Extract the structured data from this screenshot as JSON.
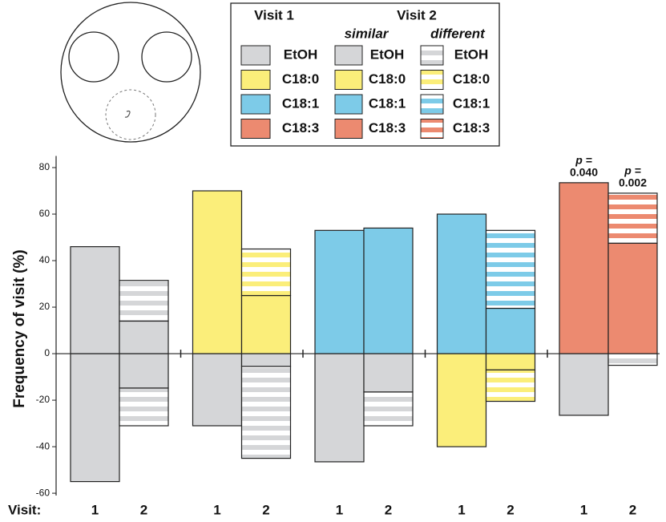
{
  "chart_data": {
    "type": "bar",
    "ylabel": "Frequency of visit (%)",
    "xlabel": "Visit:",
    "ylim": [
      -61,
      85
    ],
    "yticks": [
      -60,
      -40,
      -20,
      0,
      20,
      40,
      60,
      80
    ],
    "legend": {
      "headers": [
        "Visit 1",
        "Visit 2"
      ],
      "subheaders": [
        "similar",
        "different"
      ]
    },
    "series": [
      {
        "name": "EtOH",
        "color": "#d5d6d8"
      },
      {
        "name": "C18:0",
        "color": "#fbee7a"
      },
      {
        "name": "C18:1",
        "color": "#7dcbe8"
      },
      {
        "name": "C18:3",
        "color": "#ec8a70"
      }
    ],
    "bars": [
      {
        "label": "1",
        "segments": [
          {
            "series": "EtOH",
            "fill": "solid",
            "value": 46
          },
          {
            "series": "EtOH",
            "fill": "solid",
            "value": -55
          }
        ]
      },
      {
        "label": "2",
        "segments": [
          {
            "series": "EtOH",
            "fill": "solid",
            "value": 14
          },
          {
            "series": "EtOH",
            "fill": "striped",
            "value": 17.5
          },
          {
            "series": "EtOH",
            "fill": "solid",
            "value": -14.8
          },
          {
            "series": "EtOH",
            "fill": "striped",
            "value": -16.2
          }
        ]
      },
      {
        "label": "1",
        "segments": [
          {
            "series": "C18:0",
            "fill": "solid",
            "value": 70
          },
          {
            "series": "EtOH",
            "fill": "solid",
            "value": -31
          }
        ]
      },
      {
        "label": "2",
        "segments": [
          {
            "series": "C18:0",
            "fill": "solid",
            "value": 25
          },
          {
            "series": "C18:0",
            "fill": "striped",
            "value": 20
          },
          {
            "series": "EtOH",
            "fill": "solid",
            "value": -5.5
          },
          {
            "series": "EtOH",
            "fill": "striped",
            "value": -39.5
          }
        ]
      },
      {
        "label": "1",
        "segments": [
          {
            "series": "C18:1",
            "fill": "solid",
            "value": 53
          },
          {
            "series": "EtOH",
            "fill": "solid",
            "value": -46.5
          }
        ]
      },
      {
        "label": "2",
        "segments": [
          {
            "series": "C18:1",
            "fill": "solid",
            "value": 54
          },
          {
            "series": "EtOH",
            "fill": "solid",
            "value": -16.5
          },
          {
            "series": "EtOH",
            "fill": "striped",
            "value": -14.5
          }
        ]
      },
      {
        "label": "1",
        "segments": [
          {
            "series": "C18:1",
            "fill": "solid",
            "value": 60
          },
          {
            "series": "C18:0",
            "fill": "solid",
            "value": -40
          }
        ]
      },
      {
        "label": "2",
        "segments": [
          {
            "series": "C18:1",
            "fill": "solid",
            "value": 19.5
          },
          {
            "series": "C18:1",
            "fill": "striped",
            "value": 33.5
          },
          {
            "series": "C18:0",
            "fill": "solid",
            "value": -7
          },
          {
            "series": "C18:0",
            "fill": "striped",
            "value": -13.5
          }
        ]
      },
      {
        "label": "1",
        "annotation": [
          "p =",
          "0.040"
        ],
        "segments": [
          {
            "series": "C18:3",
            "fill": "solid",
            "value": 73.5
          },
          {
            "series": "EtOH",
            "fill": "solid",
            "value": -26.5
          }
        ]
      },
      {
        "label": "2",
        "annotation": [
          "p =",
          "0.002"
        ],
        "segments": [
          {
            "series": "C18:3",
            "fill": "solid",
            "value": 47.5
          },
          {
            "series": "C18:3",
            "fill": "striped",
            "value": 21.5
          },
          {
            "series": "EtOH",
            "fill": "striped",
            "value": -5
          }
        ]
      }
    ]
  }
}
